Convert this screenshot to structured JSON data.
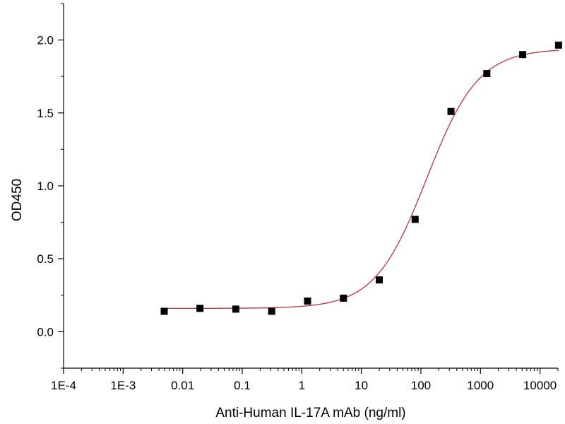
{
  "chart_data": {
    "type": "scatter",
    "title": "",
    "xlabel": "Anti-Human IL-17A mAb (ng/ml)",
    "ylabel": "OD450",
    "x_scale": "log",
    "xlim": [
      0.0001,
      20000
    ],
    "ylim": [
      -0.25,
      2.25
    ],
    "x_ticks": [
      0.0001,
      0.001,
      0.01,
      0.1,
      1,
      10,
      100,
      1000,
      10000
    ],
    "x_tick_labels": [
      "1E-4",
      "1E-3",
      "0.01",
      "0.1",
      "1",
      "10",
      "100",
      "1000",
      "10000"
    ],
    "y_ticks": [
      0.0,
      0.5,
      1.0,
      1.5,
      2.0
    ],
    "y_tick_labels": [
      "0.0",
      "0.5",
      "1.0",
      "1.5",
      "2.0"
    ],
    "grid": false,
    "legend": "none",
    "series": [
      {
        "marker": "square",
        "color": "#000000",
        "points": [
          {
            "x": 0.0049,
            "y": 0.14
          },
          {
            "x": 0.0195,
            "y": 0.16
          },
          {
            "x": 0.078,
            "y": 0.155
          },
          {
            "x": 0.3125,
            "y": 0.14
          },
          {
            "x": 1.25,
            "y": 0.21
          },
          {
            "x": 5,
            "y": 0.23
          },
          {
            "x": 20,
            "y": 0.355
          },
          {
            "x": 80,
            "y": 0.77
          },
          {
            "x": 320,
            "y": 1.51
          },
          {
            "x": 1280,
            "y": 1.77
          },
          {
            "x": 5120,
            "y": 1.9
          },
          {
            "x": 20480,
            "y": 1.965
          }
        ]
      }
    ],
    "fit_curve": {
      "type": "4PL",
      "color": "#b5414b",
      "bottom": 0.16,
      "top": 1.94,
      "ec50": 125,
      "hill": 1.0,
      "x_range": [
        0.0049,
        20480
      ]
    }
  }
}
